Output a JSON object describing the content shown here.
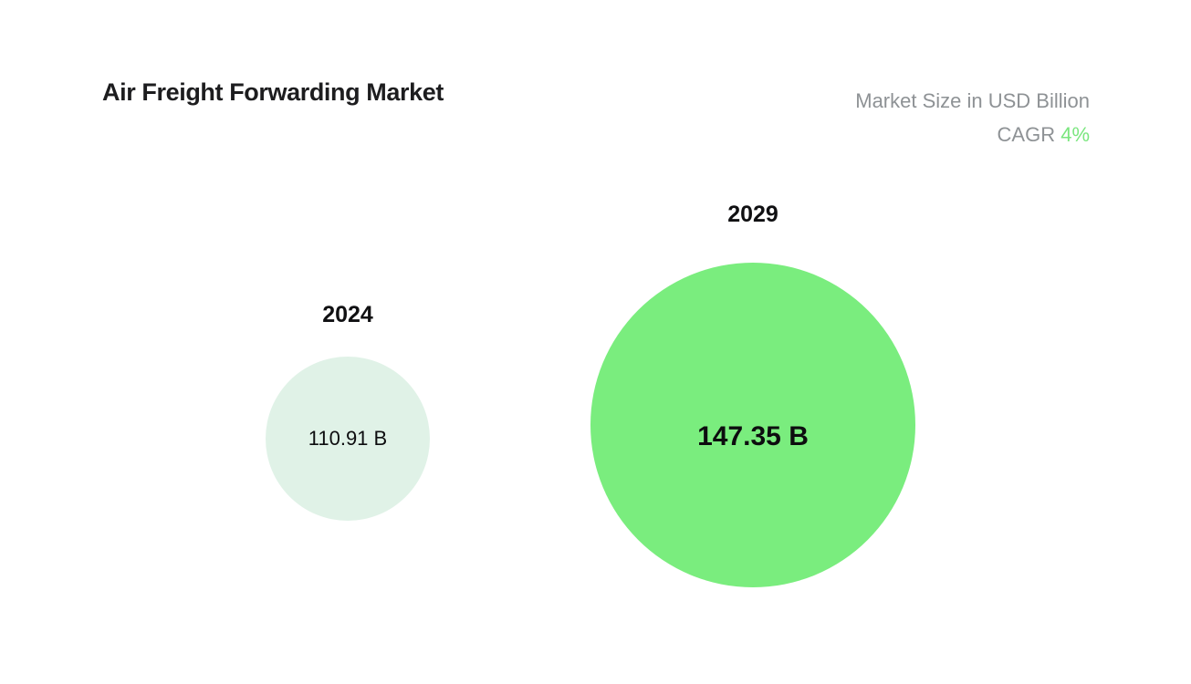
{
  "header": {
    "title": "Air Freight Forwarding Market",
    "units_label": "Market Size in USD Billion",
    "cagr_label": "CAGR ",
    "cagr_value": "4%"
  },
  "colors": {
    "accent_green": "#7aed7e",
    "light_green_bubble": "#e0f2e7",
    "green_text": "#7ae67e",
    "gray_text": "#8e9295",
    "dark_text": "#1d1d1f"
  },
  "chart_data": {
    "type": "bubble",
    "title": "Air Freight Forwarding Market",
    "subtitle": "Market Size in USD Billion",
    "units": "USD Billion",
    "cagr_percent": 4,
    "categories": [
      "2024",
      "2029"
    ],
    "values": [
      110.91,
      147.35
    ],
    "points": [
      {
        "year": "2024",
        "value": 110.91,
        "value_label": "110.91 B",
        "bubble_color": "#e0f2e7"
      },
      {
        "year": "2029",
        "value": 147.35,
        "value_label": "147.35 B",
        "bubble_color": "#7aed7e"
      }
    ],
    "legend": false,
    "layout": "two bubbles side by side, smaller 2024 bubble left, larger 2029 bubble right, year labels above bubbles, values centered inside bubbles"
  }
}
